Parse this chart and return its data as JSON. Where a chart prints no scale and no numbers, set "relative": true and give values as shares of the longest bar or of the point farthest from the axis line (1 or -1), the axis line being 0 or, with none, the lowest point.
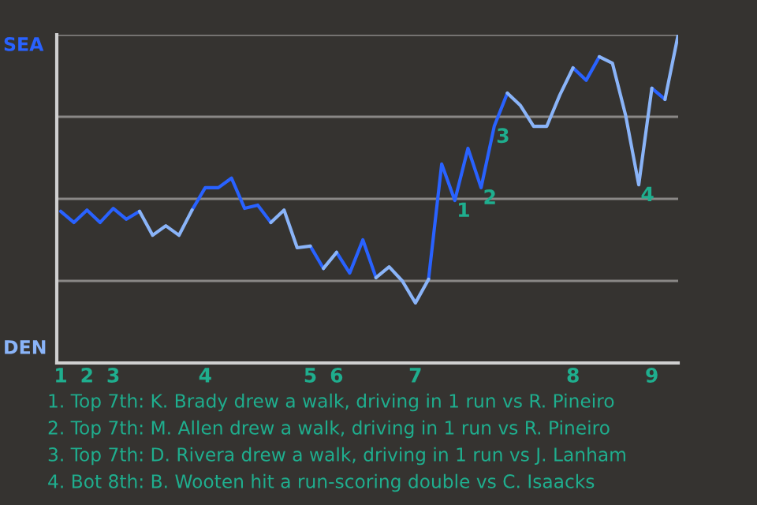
{
  "chart_data": {
    "type": "line",
    "relative": true,
    "categories": [
      "1",
      null,
      "2",
      null,
      "3",
      null,
      null,
      null,
      null,
      null,
      null,
      "4",
      null,
      null,
      null,
      null,
      null,
      null,
      null,
      "5",
      null,
      "6",
      null,
      null,
      null,
      null,
      null,
      "7",
      null,
      null,
      null,
      null,
      null,
      null,
      null,
      null,
      null,
      null,
      null,
      "8",
      null,
      null,
      null,
      null,
      null,
      "9",
      null,
      null
    ],
    "series": [
      {
        "color": "#2962ff",
        "values": [
          0.462,
          0.428,
          0.466,
          0.428,
          0.471,
          0.438,
          0.462,
          null,
          null,
          null,
          null,
          null,
          null,
          null,
          null,
          null,
          null,
          null,
          null,
          0.356,
          0.288,
          null,
          null,
          null,
          null,
          null,
          null,
          null,
          0.255,
          0.606,
          0.495,
          0.654,
          0.534,
          0.721,
          0.822,
          null,
          null,
          null,
          null,
          null,
          null,
          null,
          null,
          null,
          null,
          0.837,
          0.803,
          null
        ]
      },
      {
        "color": "#2962ff",
        "values": [
          null,
          null,
          null,
          null,
          null,
          null,
          null,
          null,
          null,
          null,
          0.466,
          0.534,
          0.534,
          0.563,
          0.471,
          0.481,
          0.428,
          null,
          null,
          null,
          null,
          0.337,
          0.274,
          0.375,
          0.26,
          null,
          null,
          null,
          null,
          null,
          null,
          null,
          null,
          null,
          null,
          null,
          null,
          null,
          null,
          0.899,
          0.861,
          0.933,
          null,
          null,
          null,
          null,
          null,
          null
        ]
      },
      {
        "color": "#8ab4f8",
        "values": [
          null,
          null,
          null,
          null,
          null,
          null,
          0.462,
          0.389,
          0.418,
          0.389,
          0.466,
          null,
          null,
          null,
          null,
          null,
          null,
          null,
          null,
          null,
          0.288,
          0.337,
          null,
          null,
          null,
          null,
          null,
          null,
          null,
          null,
          null,
          null,
          null,
          null,
          0.822,
          0.784,
          0.721,
          0.721,
          0.817,
          0.899,
          null,
          null,
          null,
          null,
          null,
          null,
          0.803,
          1
        ]
      },
      {
        "color": "#8ab4f8",
        "values": [
          null,
          null,
          null,
          null,
          null,
          null,
          null,
          null,
          null,
          null,
          null,
          null,
          null,
          null,
          null,
          null,
          0.428,
          0.466,
          0.351,
          0.356,
          null,
          null,
          null,
          null,
          0.26,
          0.293,
          0.25,
          0.183,
          0.255,
          null,
          null,
          null,
          null,
          null,
          null,
          null,
          null,
          null,
          null,
          null,
          null,
          0.933,
          0.913,
          0.755,
          0.543,
          0.837,
          null,
          null
        ]
      }
    ],
    "ref_lines": [
      {
        "axis": "y",
        "value": 0.25,
        "color": "#8a8886"
      },
      {
        "axis": "y",
        "value": 0.5,
        "color": "#8a8886"
      },
      {
        "axis": "y",
        "value": 0.75,
        "color": "#8a8886"
      },
      {
        "axis": "y",
        "value": 1,
        "color": "#8a8886"
      }
    ],
    "annotations": [
      "SEA",
      "DEN",
      {
        "text": "1",
        "y": 0.495
      },
      {
        "text": "2",
        "y": 0.534
      },
      {
        "text": "3",
        "y": 0.721
      },
      {
        "text": "4",
        "y": 0.543
      },
      "1. Top 7th: K. Brady drew a walk, driving in 1 run vs R. Pineiro",
      "2. Top 7th: M. Allen drew a walk, driving in 1 run vs R. Pineiro",
      "3. Top 7th: D. Rivera drew a walk, driving in 1 run vs J. Lanham",
      "4. Bot 8th: B. Wooten hit a run-scoring double vs C. Isaacks"
    ]
  }
}
